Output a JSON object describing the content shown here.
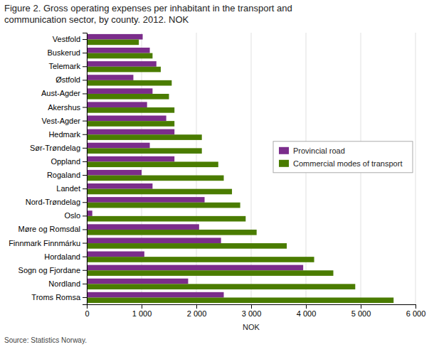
{
  "chart_data": {
    "type": "bar",
    "orientation": "horizontal",
    "title": [
      "Figure 2. Gross operating expenses per inhabitant in the transport and",
      "communication sector, by county. 2012. NOK"
    ],
    "xlabel": "NOK",
    "annotations": [
      "Source: Statistics Norway."
    ],
    "categories": [
      "Vestfold",
      "Buskerud",
      "Telemark",
      "Østfold",
      "Aust-Agder",
      "Akershus",
      "Vest-Agder",
      "Hedmark",
      "Sør-Trøndelag",
      "Oppland",
      "Rogaland",
      "Landet",
      "Nord-Trøndelag",
      "Oslo",
      "Møre og Romsdal",
      "Finnmark Finnmárku",
      "Hordaland",
      "Sogn og Fjordane",
      "Nordland",
      "Troms Romsa"
    ],
    "series": [
      {
        "name": "Provincial road",
        "color": "#7b2d8b",
        "values": [
          1020,
          1150,
          1270,
          850,
          1200,
          1100,
          1450,
          1600,
          1150,
          1600,
          1000,
          1200,
          2150,
          100,
          2050,
          2450,
          1050,
          3950,
          1850,
          2500
        ]
      },
      {
        "name": "Commercial modes of transport",
        "color": "#4a7c00",
        "values": [
          950,
          1200,
          1350,
          1550,
          1500,
          1600,
          1600,
          2100,
          2100,
          2400,
          2500,
          2650,
          2800,
          2900,
          3100,
          3650,
          4150,
          4500,
          4900,
          5600
        ]
      }
    ],
    "xlim": [
      0,
      6000
    ],
    "xticks": [
      0,
      {
        "value": 1000,
        "label": "1 000"
      },
      {
        "value": 2000,
        "label": "2 000"
      },
      {
        "value": 3000,
        "label": "3 000"
      },
      {
        "value": 4000,
        "label": "4 000"
      },
      {
        "value": 5000,
        "label": "5 000"
      },
      {
        "value": 6000,
        "label": "6 000"
      }
    ],
    "grid": true,
    "legend": "right"
  }
}
